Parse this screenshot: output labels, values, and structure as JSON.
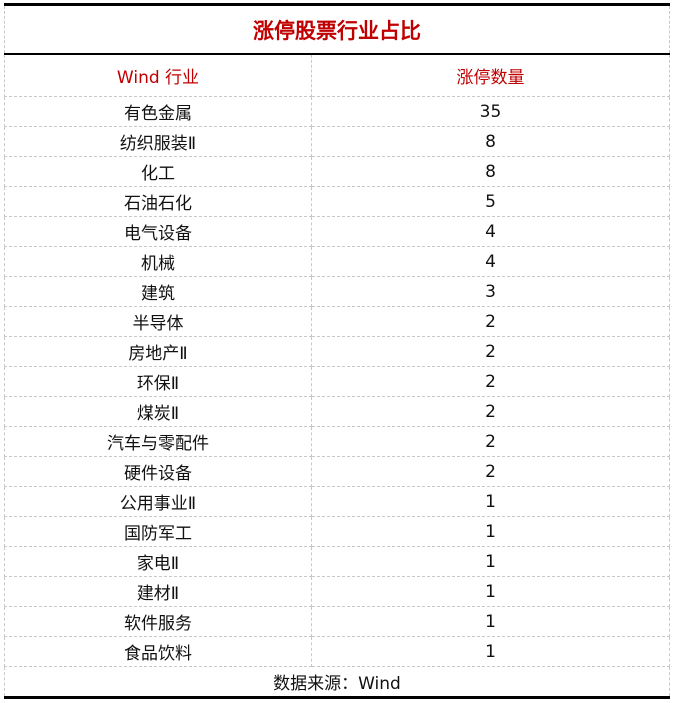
{
  "title": "涨停股票行业占比",
  "headers": [
    "Wind 行业",
    "涨停数量"
  ],
  "accent_color": "#c00000",
  "rows": [
    {
      "industry": "有色金属",
      "count": "35"
    },
    {
      "industry": "纺织服装Ⅱ",
      "count": "8"
    },
    {
      "industry": "化工",
      "count": "8"
    },
    {
      "industry": "石油石化",
      "count": "5"
    },
    {
      "industry": "电气设备",
      "count": "4"
    },
    {
      "industry": "机械",
      "count": "4"
    },
    {
      "industry": "建筑",
      "count": "3"
    },
    {
      "industry": "半导体",
      "count": "2"
    },
    {
      "industry": "房地产Ⅱ",
      "count": "2"
    },
    {
      "industry": "环保Ⅱ",
      "count": "2"
    },
    {
      "industry": "煤炭Ⅱ",
      "count": "2"
    },
    {
      "industry": "汽车与零配件",
      "count": "2"
    },
    {
      "industry": "硬件设备",
      "count": "2"
    },
    {
      "industry": "公用事业Ⅱ",
      "count": "1"
    },
    {
      "industry": "国防军工",
      "count": "1"
    },
    {
      "industry": "家电Ⅱ",
      "count": "1"
    },
    {
      "industry": "建材Ⅱ",
      "count": "1"
    },
    {
      "industry": "软件服务",
      "count": "1"
    },
    {
      "industry": "食品饮料",
      "count": "1"
    }
  ],
  "footer": "数据来源：Wind"
}
